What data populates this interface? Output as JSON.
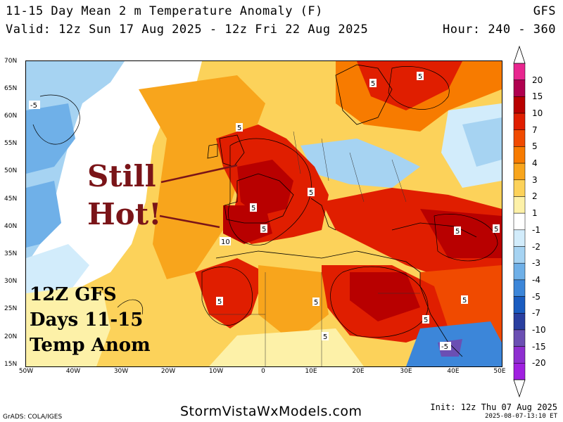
{
  "header": {
    "title": "11-15 Day Mean 2 m Temperature Anomaly (F)",
    "model": "GFS",
    "valid": "Valid: 12z Sun 17 Aug 2025 - 12z Fri 22 Aug 2025",
    "hour": "Hour: 240 - 360"
  },
  "map": {
    "lat_labels": [
      "70N",
      "65N",
      "60N",
      "55N",
      "50N",
      "45N",
      "40N",
      "35N",
      "30N",
      "25N",
      "20N",
      "15N"
    ],
    "lon_labels": [
      "50W",
      "40W",
      "30W",
      "20W",
      "10W",
      "0",
      "10E",
      "20E",
      "30E",
      "40E",
      "50E"
    ],
    "contour_labels": [
      "-5",
      "5",
      "5",
      "5",
      "5",
      "5",
      "5",
      "10",
      "5",
      "5",
      "5",
      "5",
      "5",
      "5",
      "5",
      "-5"
    ]
  },
  "colorbar": {
    "labels": [
      "20",
      "15",
      "10",
      "7",
      "5",
      "4",
      "3",
      "2",
      "1",
      "-1",
      "-2",
      "-3",
      "-4",
      "-5",
      "-7",
      "-10",
      "-15",
      "-20"
    ],
    "colors": [
      "#e8268f",
      "#b0004f",
      "#b80000",
      "#e01e00",
      "#f04a00",
      "#f77b00",
      "#f8a51c",
      "#fcd25a",
      "#fdf1a8",
      "#ffffff",
      "#d2ecfb",
      "#a6d3f2",
      "#6fb0e8",
      "#3c86d9",
      "#1a5cc0",
      "#2a3fa0",
      "#6b4fb3",
      "#8e2fd0",
      "#a020e0"
    ]
  },
  "annotations": {
    "still": "Still",
    "hot": "Hot!",
    "run_line1": "12Z GFS",
    "run_line2": "Days 11-15",
    "run_line3": "Temp Anom"
  },
  "footer": {
    "credit": "GrADS: COLA/IGES",
    "site": "StormVistaWxModels.com",
    "init": "Init: 12z Thu 07 Aug 2025",
    "generated": "2025-08-07-13:10 ET"
  }
}
